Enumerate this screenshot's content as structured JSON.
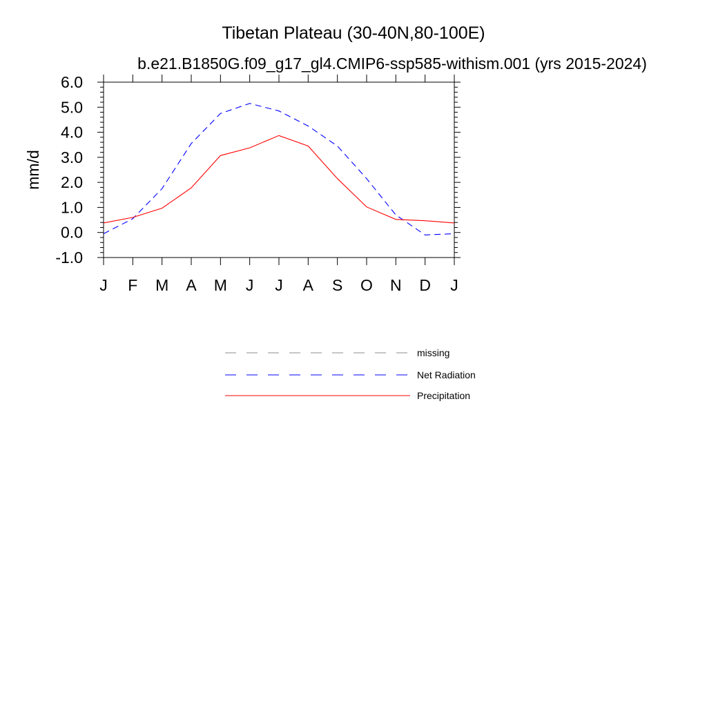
{
  "chart_data": {
    "type": "line",
    "title": "Tibetan Plateau (30-40N,80-100E)",
    "subtitle": "b.e21.B1850G.f09_g17_gl4.CMIP6-ssp585-withism.001 (yrs 2015-2024)",
    "xlabel": "",
    "ylabel": "mm/d",
    "categories": [
      "J",
      "F",
      "M",
      "A",
      "M",
      "J",
      "J",
      "A",
      "S",
      "O",
      "N",
      "D",
      "J"
    ],
    "ylim": [
      -1.0,
      6.0
    ],
    "yticks": [
      "6.0",
      "5.0",
      "4.0",
      "3.0",
      "2.0",
      "1.0",
      "0.0",
      "-1.0"
    ],
    "grid": false,
    "legend_position": "bottom-center",
    "series": [
      {
        "name": "Net Radiation",
        "color": "#0000ff",
        "style": "dashed",
        "values": [
          -0.05,
          0.55,
          1.75,
          3.55,
          4.75,
          5.15,
          4.85,
          4.25,
          3.45,
          2.15,
          0.7,
          -0.1,
          -0.05
        ]
      },
      {
        "name": "Precipitation",
        "color": "#ff0000",
        "style": "solid",
        "values": [
          0.38,
          0.6,
          0.97,
          1.78,
          3.07,
          3.38,
          3.87,
          3.45,
          2.15,
          1.02,
          0.52,
          0.47,
          0.38
        ]
      }
    ],
    "legend": [
      {
        "label": "missing",
        "color": "#8c8c8c",
        "style": "dashed"
      },
      {
        "label": "Net Radiation",
        "color": "#0000ff",
        "style": "dashed"
      },
      {
        "label": "Precipitation",
        "color": "#ff0000",
        "style": "solid"
      }
    ]
  }
}
